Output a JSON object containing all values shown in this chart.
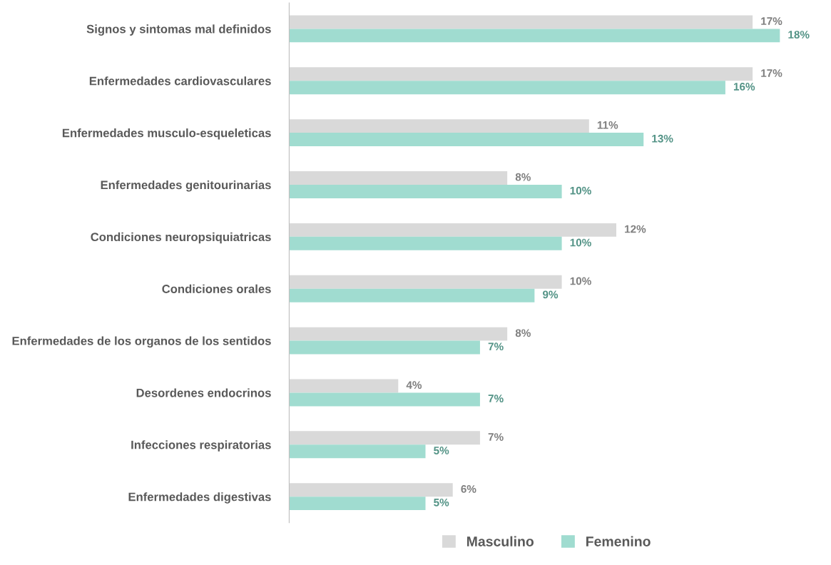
{
  "chart_data": {
    "type": "bar",
    "orientation": "horizontal",
    "categories": [
      "Signos y sintomas mal definidos",
      "Enfermedades cardiovasculares",
      "Enfermedades musculo-esqueleticas",
      "Enfermedades genitourinarias",
      "Condiciones neuropsiquiatricas",
      "Condiciones orales",
      "Enfermedades de los organos de los sentidos",
      "Desordenes endocrinos",
      "Infecciones respiratorias",
      "Enfermedades digestivas"
    ],
    "series": [
      {
        "name": "Masculino",
        "color": "#d9d9d9",
        "values": [
          17,
          17,
          11,
          8,
          12,
          10,
          8,
          4,
          7,
          6
        ],
        "value_labels": [
          "17%",
          "17%",
          "11%",
          "8%",
          "12%",
          "10%",
          "8%",
          "4%",
          "7%",
          "6%"
        ]
      },
      {
        "name": "Femenino",
        "color": "#a0dcd0",
        "values": [
          18,
          16,
          13,
          10,
          10,
          9,
          7,
          7,
          5,
          5
        ],
        "value_labels": [
          "18%",
          "16%",
          "13%",
          "10%",
          "10%",
          "9%",
          "7%",
          "7%",
          "5%",
          "5%"
        ]
      }
    ],
    "legend": "bottom"
  }
}
